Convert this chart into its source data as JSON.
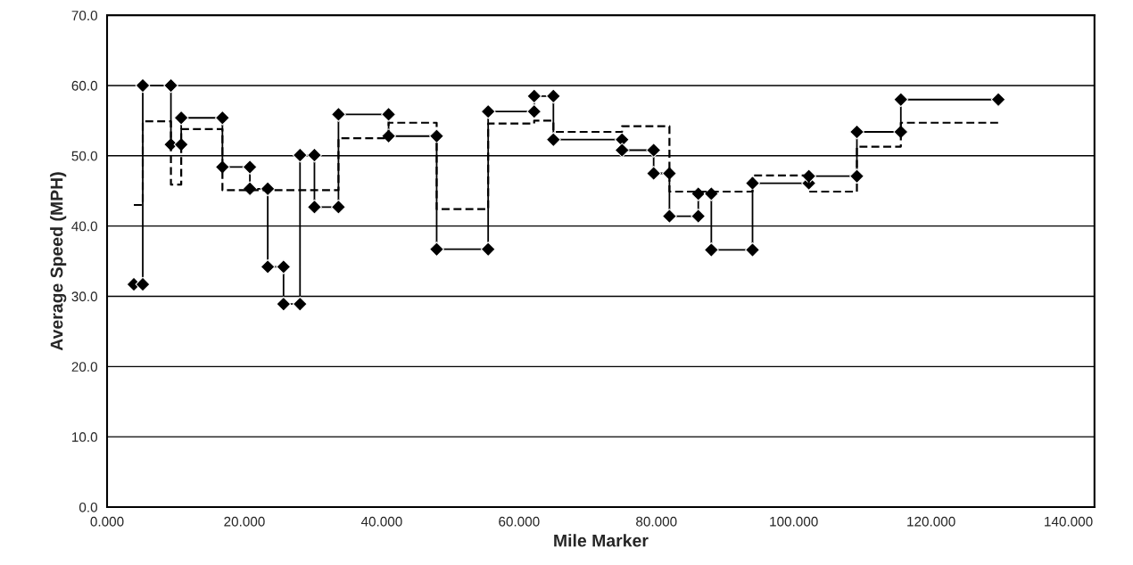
{
  "chart_data": {
    "type": "line",
    "xlabel": "Mile Marker",
    "ylabel": "Average Speed (MPH)",
    "xlim": [
      0,
      143.8
    ],
    "ylim": [
      0,
      70
    ],
    "xticks": [
      {
        "value": 0,
        "label": "0.000"
      },
      {
        "value": 20,
        "label": "20.000"
      },
      {
        "value": 40,
        "label": "40.000"
      },
      {
        "value": 60,
        "label": "60.000"
      },
      {
        "value": 80,
        "label": "80.000"
      },
      {
        "value": 100,
        "label": "100.000"
      },
      {
        "value": 120,
        "label": "120.000"
      },
      {
        "value": 140,
        "label": "140.000"
      }
    ],
    "yticks": [
      {
        "value": 0,
        "label": "0.0"
      },
      {
        "value": 10,
        "label": "10.0"
      },
      {
        "value": 20,
        "label": "20.0"
      },
      {
        "value": 30,
        "label": "30.0"
      },
      {
        "value": 40,
        "label": "40.0"
      },
      {
        "value": 50,
        "label": "50.0"
      },
      {
        "value": 60,
        "label": "60.0"
      },
      {
        "value": 70,
        "label": "70.0"
      }
    ],
    "grid": "y",
    "legend": false,
    "series": [
      {
        "color": "#000000",
        "marker": "diamond",
        "line_style": "solid",
        "x": [
          3.9,
          5.2,
          5.2,
          9.3,
          9.3,
          10.8,
          10.8,
          16.8,
          16.8,
          20.8,
          20.8,
          23.4,
          23.4,
          25.7,
          25.7,
          28.1,
          28.1,
          30.2,
          30.2,
          33.7,
          33.7,
          41.0,
          41.0,
          48.0,
          48.0,
          55.5,
          55.5,
          62.2,
          62.2,
          65.0,
          65.0,
          75.0,
          75.0,
          79.6,
          79.6,
          81.9,
          81.9,
          86.1,
          86.1,
          88.0,
          88.0,
          94.0,
          94.0,
          102.2,
          102.2,
          109.2,
          109.2,
          115.6,
          115.6,
          129.8
        ],
        "values": [
          31.7,
          31.7,
          60.0,
          60.0,
          51.6,
          51.6,
          55.4,
          55.4,
          48.4,
          48.4,
          45.3,
          45.3,
          34.2,
          34.2,
          28.9,
          28.9,
          50.1,
          50.1,
          42.7,
          42.7,
          55.9,
          55.9,
          52.8,
          52.8,
          36.7,
          36.7,
          56.3,
          56.3,
          58.5,
          58.5,
          52.3,
          52.3,
          50.8,
          50.8,
          47.5,
          47.5,
          41.4,
          41.4,
          44.6,
          44.6,
          36.6,
          36.6,
          46.1,
          46.1,
          47.1,
          47.1,
          53.4,
          53.4,
          58.0,
          58.0
        ]
      },
      {
        "type": "step",
        "color": "#000000",
        "marker": "none",
        "line_style": "dashed",
        "x": [
          3.9,
          5.2,
          9.3,
          10.8,
          16.8,
          33.7,
          41.0,
          48.0,
          55.5,
          62.2,
          65.0,
          75.0,
          81.9,
          94.0,
          102.2,
          109.2,
          115.6,
          129.8
        ],
        "values": [
          43.0,
          54.9,
          45.9,
          53.8,
          45.1,
          52.5,
          54.7,
          42.4,
          54.6,
          55.0,
          53.4,
          54.2,
          44.9,
          47.2,
          44.9,
          51.3,
          54.7,
          54.7
        ]
      }
    ]
  }
}
